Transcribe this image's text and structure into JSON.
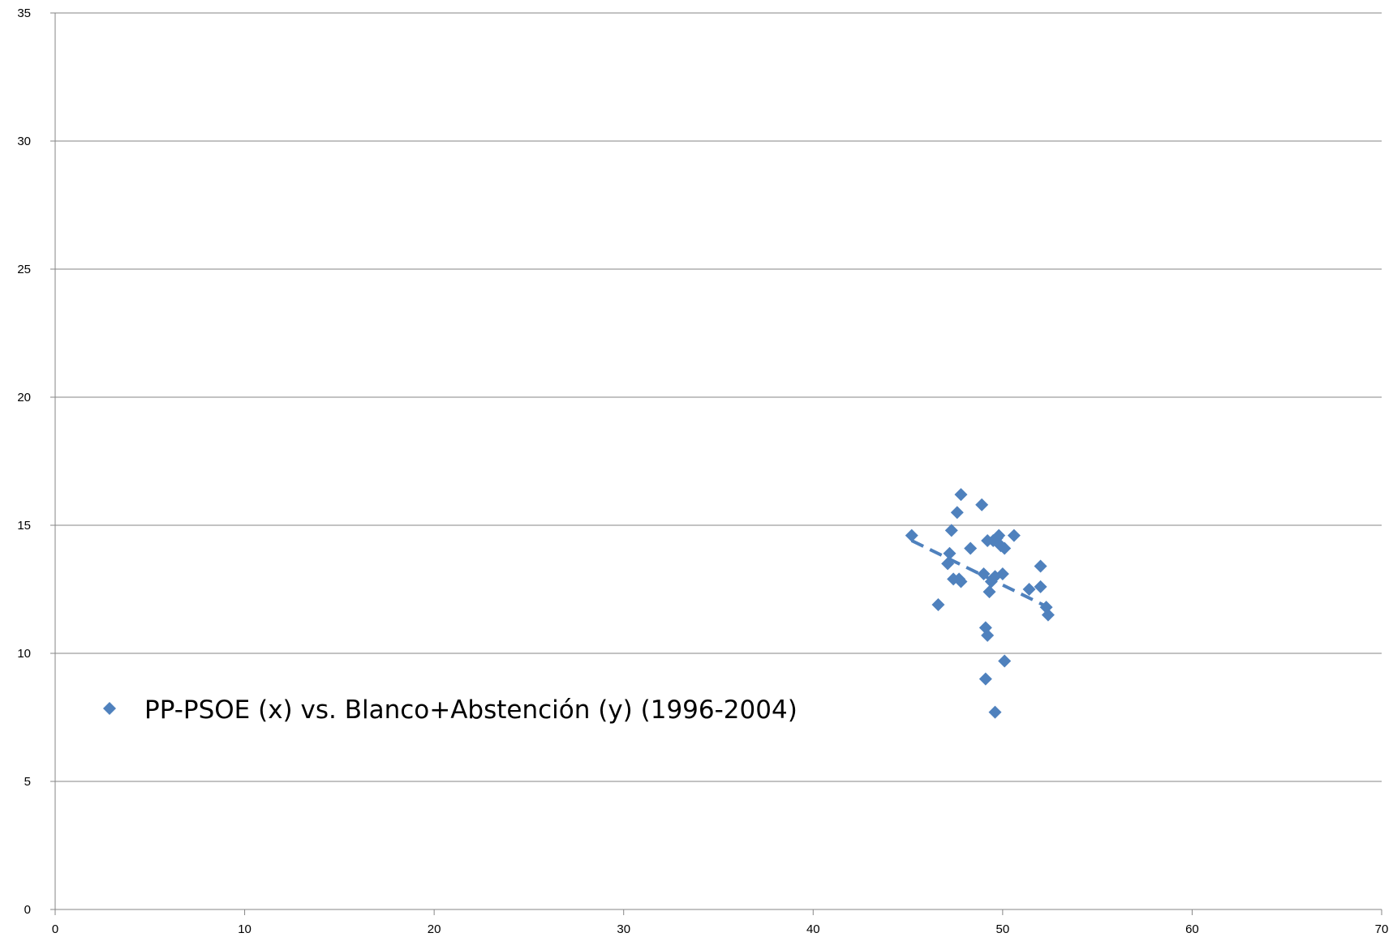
{
  "chart_data": {
    "type": "scatter",
    "title": "",
    "xlabel": "",
    "ylabel": "",
    "xlim": [
      0,
      70
    ],
    "ylim": [
      0,
      35
    ],
    "x_ticks": [
      0,
      10,
      20,
      30,
      40,
      50,
      60,
      70
    ],
    "y_ticks": [
      0,
      5,
      10,
      15,
      20,
      25,
      30,
      35
    ],
    "grid": {
      "horizontal": true,
      "vertical": false
    },
    "legend_position": "left-middle",
    "series": [
      {
        "name": "PP-PSOE (x) vs. Blanco+Abstención (y) (1996-2004)",
        "color": "#4f81bd",
        "marker": "diamond",
        "x": [
          45.2,
          46.6,
          47.1,
          47.2,
          47.3,
          47.4,
          47.6,
          47.7,
          47.8,
          47.8,
          48.3,
          48.9,
          49.0,
          49.1,
          49.1,
          49.2,
          49.2,
          49.3,
          49.4,
          49.5,
          49.6,
          49.6,
          49.7,
          49.8,
          49.9,
          50.0,
          50.1,
          50.1,
          50.6,
          51.4,
          52.0,
          52.0,
          52.3,
          52.4
        ],
        "y": [
          14.6,
          11.9,
          13.5,
          13.9,
          14.8,
          12.9,
          15.5,
          12.9,
          12.8,
          16.2,
          14.1,
          15.8,
          13.1,
          9.0,
          11.0,
          10.7,
          14.4,
          12.4,
          12.8,
          14.4,
          7.7,
          13.0,
          14.5,
          14.6,
          14.2,
          13.1,
          14.1,
          9.7,
          14.6,
          12.5,
          13.4,
          12.6,
          11.8,
          11.5
        ]
      }
    ],
    "trendline": {
      "style": "dashed",
      "color": "#4f81bd",
      "x": [
        45.2,
        52.4
      ],
      "y": [
        14.4,
        11.8
      ]
    }
  }
}
